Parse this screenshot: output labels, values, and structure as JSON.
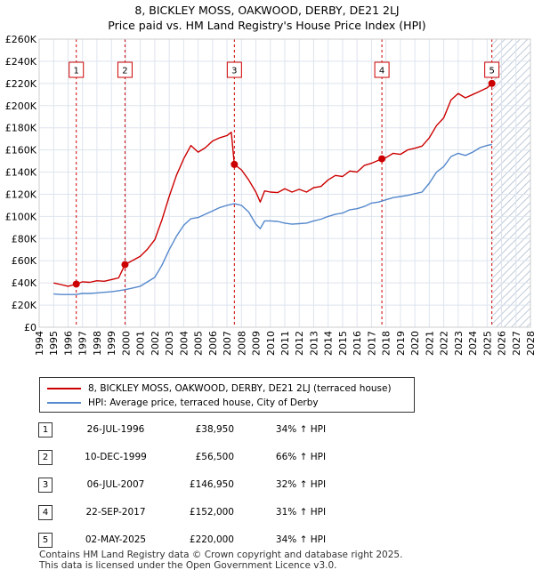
{
  "title_line1": "8, BICKLEY MOSS, OAKWOOD, DERBY, DE21 2LJ",
  "title_line2": "Price paid vs. HM Land Registry's House Price Index (HPI)",
  "legend": {
    "property": "8, BICKLEY MOSS, OAKWOOD, DERBY, DE21 2LJ (terraced house)",
    "hpi": "HPI: Average price, terraced house, City of Derby"
  },
  "colors": {
    "property": "#cc0000",
    "hpi": "#5588cc",
    "hatch": "#aab8cc",
    "grid": "#dde4ee"
  },
  "sales": [
    {
      "num": "1",
      "date": "26-JUL-1996",
      "price": "£38,950",
      "hpi": "34% ↑ HPI"
    },
    {
      "num": "2",
      "date": "10-DEC-1999",
      "price": "£56,500",
      "hpi": "66% ↑ HPI"
    },
    {
      "num": "3",
      "date": "06-JUL-2007",
      "price": "£146,950",
      "hpi": "32% ↑ HPI"
    },
    {
      "num": "4",
      "date": "22-SEP-2017",
      "price": "£152,000",
      "hpi": "31% ↑ HPI"
    },
    {
      "num": "5",
      "date": "02-MAY-2025",
      "price": "£220,000",
      "hpi": "34% ↑ HPI"
    }
  ],
  "footer_line1": "Contains HM Land Registry data © Crown copyright and database right 2025.",
  "footer_line2": "This data is licensed under the Open Government Licence v3.0.",
  "chart_data": {
    "type": "line",
    "xlim": [
      1994,
      2028
    ],
    "ylim": [
      0,
      260000
    ],
    "x_ticks": [
      "1994",
      "1995",
      "1996",
      "1997",
      "1998",
      "1999",
      "2000",
      "2001",
      "2002",
      "2003",
      "2004",
      "2005",
      "2006",
      "2007",
      "2008",
      "2009",
      "2010",
      "2011",
      "2012",
      "2013",
      "2014",
      "2015",
      "2016",
      "2017",
      "2018",
      "2019",
      "2020",
      "2021",
      "2022",
      "2023",
      "2024",
      "2025",
      "2026",
      "2027",
      "2028"
    ],
    "y_ticks": [
      "£0",
      "£20K",
      "£40K",
      "£60K",
      "£80K",
      "£100K",
      "£120K",
      "£140K",
      "£160K",
      "£180K",
      "£200K",
      "£220K",
      "£240K",
      "£260K"
    ],
    "y_tick_values": [
      0,
      20000,
      40000,
      60000,
      80000,
      100000,
      120000,
      140000,
      160000,
      180000,
      200000,
      220000,
      240000,
      260000
    ],
    "hatch_from": 2025.33,
    "sale_markers": [
      {
        "label": "1",
        "x": 1996.57,
        "y": 38950
      },
      {
        "label": "2",
        "x": 1999.94,
        "y": 56500
      },
      {
        "label": "3",
        "x": 2007.51,
        "y": 146950
      },
      {
        "label": "4",
        "x": 2017.72,
        "y": 152000
      },
      {
        "label": "5",
        "x": 2025.33,
        "y": 220000
      }
    ],
    "series": [
      {
        "name": "8, BICKLEY MOSS, OAKWOOD, DERBY, DE21 2LJ (terraced house)",
        "x": [
          1995.0,
          1995.5,
          1996.0,
          1996.57,
          1997.0,
          1997.5,
          1998.0,
          1998.5,
          1999.0,
          1999.5,
          1999.94,
          2000.5,
          2001.0,
          2001.5,
          2002.0,
          2002.5,
          2003.0,
          2003.5,
          2004.0,
          2004.5,
          2005.0,
          2005.5,
          2006.0,
          2006.5,
          2007.0,
          2007.3,
          2007.51,
          2008.0,
          2008.5,
          2009.0,
          2009.3,
          2009.6,
          2010.0,
          2010.5,
          2011.0,
          2011.5,
          2012.0,
          2012.5,
          2013.0,
          2013.5,
          2014.0,
          2014.5,
          2015.0,
          2015.5,
          2016.0,
          2016.5,
          2017.0,
          2017.72,
          2018.0,
          2018.5,
          2019.0,
          2019.5,
          2020.0,
          2020.5,
          2021.0,
          2021.5,
          2022.0,
          2022.5,
          2023.0,
          2023.5,
          2024.0,
          2024.5,
          2025.0,
          2025.33
        ],
        "values": [
          40000,
          38500,
          37000,
          38950,
          41000,
          40500,
          42000,
          41500,
          43000,
          44500,
          56500,
          60500,
          64000,
          70500,
          79000,
          97000,
          118000,
          137000,
          152000,
          164000,
          158000,
          162000,
          168000,
          171000,
          173000,
          176000,
          146950,
          142000,
          133000,
          122000,
          113000,
          123000,
          122000,
          121500,
          125000,
          122000,
          124500,
          122000,
          126000,
          127000,
          133000,
          137000,
          136000,
          141000,
          140000,
          146000,
          148000,
          152000,
          153000,
          157000,
          156000,
          160000,
          161500,
          163500,
          171000,
          182000,
          189000,
          205000,
          211000,
          207000,
          210000,
          213000,
          216000,
          220000
        ]
      },
      {
        "name": "HPI: Average price, terraced house, City of Derby",
        "x": [
          1995.0,
          1995.5,
          1996.0,
          1996.5,
          1997.0,
          1997.5,
          1998.0,
          1998.5,
          1999.0,
          1999.5,
          2000.0,
          2000.5,
          2001.0,
          2001.5,
          2002.0,
          2002.5,
          2003.0,
          2003.5,
          2004.0,
          2004.5,
          2005.0,
          2005.5,
          2006.0,
          2006.5,
          2007.0,
          2007.5,
          2008.0,
          2008.5,
          2009.0,
          2009.3,
          2009.6,
          2010.0,
          2010.5,
          2011.0,
          2011.5,
          2012.0,
          2012.5,
          2013.0,
          2013.5,
          2014.0,
          2014.5,
          2015.0,
          2015.5,
          2016.0,
          2016.5,
          2017.0,
          2017.5,
          2018.0,
          2018.5,
          2019.0,
          2019.5,
          2020.0,
          2020.5,
          2021.0,
          2021.5,
          2022.0,
          2022.5,
          2023.0,
          2023.5,
          2024.0,
          2024.5,
          2025.0,
          2025.33
        ],
        "values": [
          30000,
          29500,
          29500,
          29500,
          30500,
          30500,
          31000,
          31500,
          32000,
          33000,
          34000,
          35500,
          37000,
          41000,
          45000,
          56000,
          70000,
          82000,
          92000,
          98000,
          99000,
          102000,
          105000,
          108000,
          110000,
          111500,
          110000,
          104000,
          93000,
          89000,
          96000,
          96000,
          95500,
          94000,
          93000,
          93500,
          94000,
          96000,
          97500,
          100000,
          102000,
          103000,
          106000,
          107000,
          109000,
          112000,
          113000,
          115000,
          117000,
          118000,
          119000,
          120500,
          122000,
          130000,
          140000,
          145000,
          154000,
          157000,
          155000,
          158000,
          162000,
          164000,
          165000
        ]
      }
    ]
  }
}
